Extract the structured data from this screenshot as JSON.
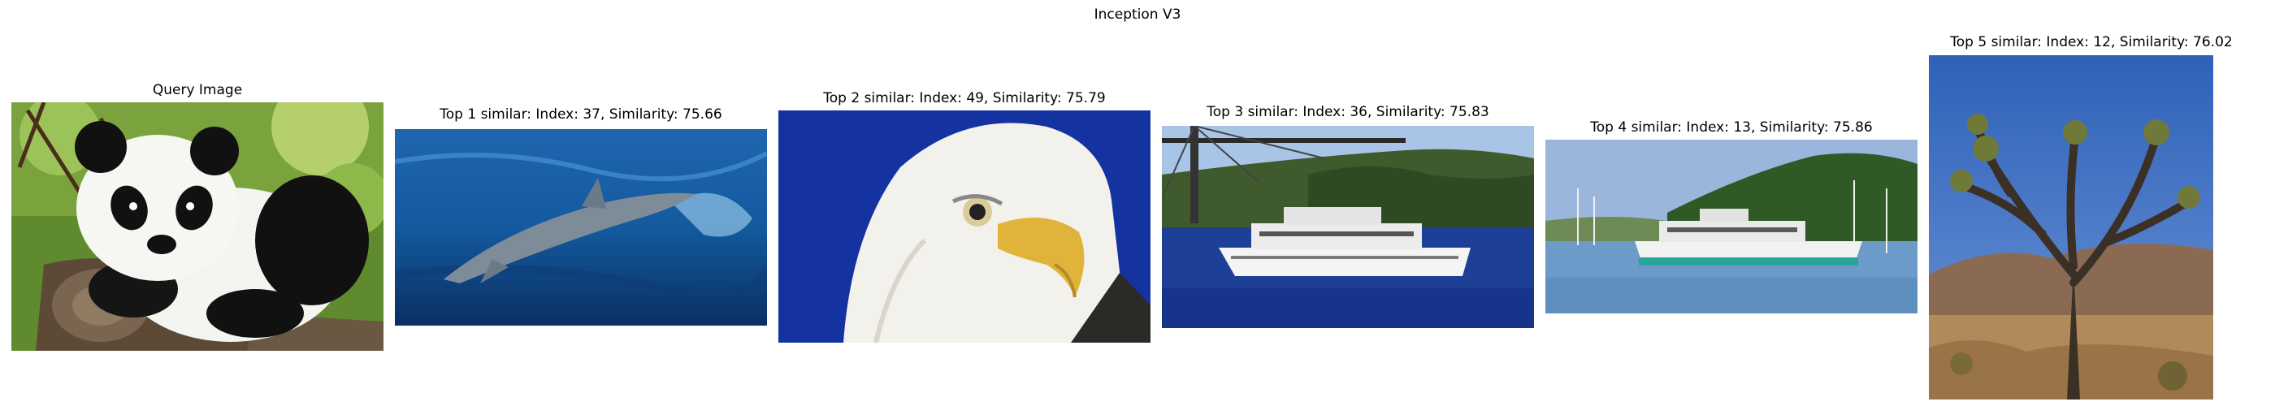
{
  "figure": {
    "title": "Inception V3"
  },
  "panels": [
    {
      "title": "Query Image",
      "image": "panda-photo"
    },
    {
      "title": "Top 1 similar: Index: 37, Similarity: 75.66",
      "image": "dolphin-photo"
    },
    {
      "title": "Top 2 similar: Index: 49, Similarity: 75.79",
      "image": "bald-eagle-photo"
    },
    {
      "title": "Top 3 similar: Index: 36, Similarity: 75.83",
      "image": "ferry-under-bridge-photo"
    },
    {
      "title": "Top 4 similar: Index: 13, Similarity: 75.86",
      "image": "ferry-harbor-photo"
    },
    {
      "title": "Top 5 similar: Index: 12, Similarity: 76.02",
      "image": "joshua-tree-photo"
    }
  ]
}
